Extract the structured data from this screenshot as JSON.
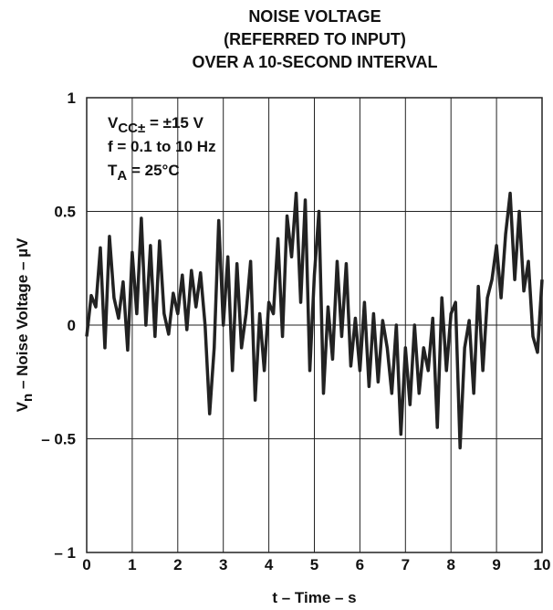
{
  "chart_data": {
    "type": "line",
    "title": [
      "NOISE VOLTAGE",
      "(REFERRED TO INPUT)",
      "OVER A 10-SECOND INTERVAL"
    ],
    "ylabel": {
      "main": "V",
      "sub": "n",
      "rest": " – Noise Voltage – µV"
    },
    "xlabel": "t – Time – s",
    "annotations": [
      {
        "main": "V",
        "sub": "CC±",
        "rest": " = ±15 V"
      },
      {
        "main": "f = 0.1 to 10 Hz"
      },
      {
        "main": "T",
        "sub": "A",
        "rest": " = 25°C"
      }
    ],
    "xlim": [
      0,
      10
    ],
    "xticks": [
      0,
      1,
      2,
      3,
      4,
      5,
      6,
      7,
      8,
      9,
      10
    ],
    "ylim": [
      -1,
      1
    ],
    "yticks": [
      {
        "value": -1,
        "label": "– 1"
      },
      {
        "value": -0.5,
        "label": "– 0.5"
      },
      0,
      0.5,
      1
    ],
    "grid": true,
    "series": [
      {
        "color": "#222222",
        "x": [
          0,
          0.1,
          0.2,
          0.3,
          0.4,
          0.5,
          0.6,
          0.7,
          0.8,
          0.9,
          1,
          1.1,
          1.2,
          1.3,
          1.4,
          1.5,
          1.6,
          1.7,
          1.8,
          1.9,
          2,
          2.1,
          2.2,
          2.3,
          2.4,
          2.5,
          2.6,
          2.7,
          2.8,
          2.9,
          3,
          3.1,
          3.2,
          3.3,
          3.4,
          3.5,
          3.6,
          3.7,
          3.8,
          3.9,
          4,
          4.1,
          4.2,
          4.3,
          4.4,
          4.5,
          4.6,
          4.7,
          4.8,
          4.9,
          5,
          5.1,
          5.2,
          5.3,
          5.4,
          5.5,
          5.6,
          5.7,
          5.8,
          5.9,
          6,
          6.1,
          6.2,
          6.3,
          6.4,
          6.5,
          6.6,
          6.7,
          6.8,
          6.9,
          7,
          7.1,
          7.2,
          7.3,
          7.4,
          7.5,
          7.6,
          7.7,
          7.8,
          7.9,
          8,
          8.1,
          8.2,
          8.3,
          8.4,
          8.5,
          8.6,
          8.7,
          8.8,
          8.9,
          9,
          9.1,
          9.2,
          9.3,
          9.4,
          9.5,
          9.6,
          9.7,
          9.8,
          9.9,
          10
        ],
        "values": [
          -0.05,
          0.13,
          0.08,
          0.34,
          -0.1,
          0.39,
          0.12,
          0.03,
          0.19,
          -0.11,
          0.32,
          0.05,
          0.47,
          0,
          0.35,
          -0.05,
          0.37,
          0.05,
          -0.04,
          0.14,
          0.05,
          0.22,
          -0.02,
          0.24,
          0.08,
          0.23,
          0,
          -0.39,
          -0.1,
          0.46,
          0,
          0.3,
          -0.2,
          0.27,
          -0.1,
          0.05,
          0.28,
          -0.33,
          0.05,
          -0.2,
          0.1,
          0.05,
          0.38,
          -0.05,
          0.48,
          0.3,
          0.58,
          0.1,
          0.55,
          -0.2,
          0.22,
          0.5,
          -0.3,
          0.08,
          -0.15,
          0.28,
          -0.05,
          0.27,
          -0.18,
          0.03,
          -0.2,
          0.1,
          -0.27,
          0.05,
          -0.25,
          0.02,
          -0.1,
          -0.3,
          0,
          -0.48,
          -0.1,
          -0.35,
          0,
          -0.3,
          -0.1,
          -0.2,
          0.03,
          -0.45,
          0.12,
          -0.2,
          0.05,
          0.1,
          -0.54,
          -0.1,
          0.02,
          -0.3,
          0.17,
          -0.2,
          0.12,
          0.2,
          0.35,
          0.12,
          0.4,
          0.58,
          0.2,
          0.5,
          0.15,
          0.28,
          -0.05,
          -0.12,
          0.2
        ]
      }
    ]
  }
}
